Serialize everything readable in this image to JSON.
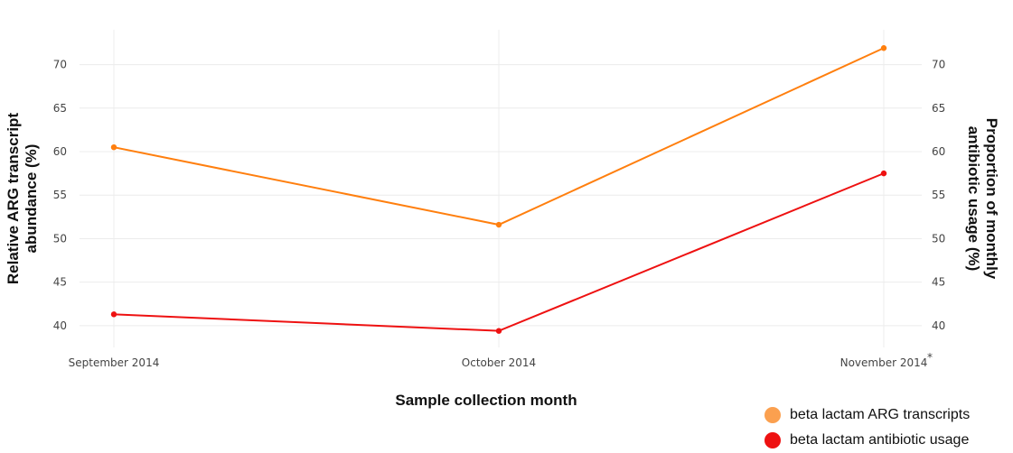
{
  "chart_data": {
    "type": "line",
    "categories": [
      "September 2014",
      "October 2014",
      "November 2014"
    ],
    "x_tick_labels": [
      "September 2014",
      "October 2014",
      "November 2014"
    ],
    "x_note": "*",
    "xlabel": "Sample collection month",
    "ylabel_left": [
      "Relative ARG transcript",
      "abundance (%)"
    ],
    "ylabel_right": [
      "Proportion of monthly",
      "antibiotic usage (%)"
    ],
    "ylim": [
      37.5,
      74
    ],
    "y_ticks": [
      40,
      45,
      50,
      55,
      60,
      65,
      70
    ],
    "grid": true,
    "legend_position": "bottom-right",
    "series": [
      {
        "name": "beta lactam ARG transcripts",
        "color": "#ff7f0e",
        "legend_color": "#fba04f",
        "values": [
          60.5,
          51.6,
          71.9
        ]
      },
      {
        "name": "beta lactam antibiotic usage",
        "color": "#ee1111",
        "legend_color": "#ee1111",
        "values": [
          41.3,
          39.4,
          57.5
        ]
      }
    ]
  }
}
